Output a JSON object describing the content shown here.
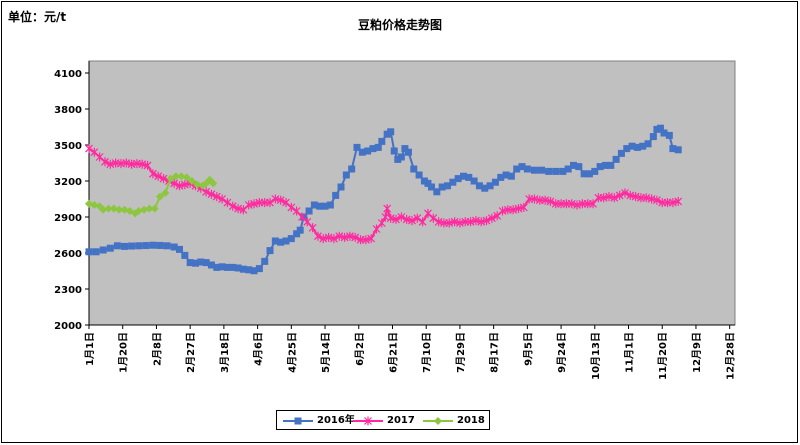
{
  "chart_data": {
    "type": "line",
    "title": "豆粕价格走势图",
    "unit_label": "单位：元/t",
    "ylim": [
      2000,
      4200
    ],
    "y_ticks": [
      2000,
      2300,
      2600,
      2900,
      3200,
      3500,
      3800,
      4100
    ],
    "x_ticks": [
      "1月1日",
      "1月20日",
      "2月8日",
      "2月27日",
      "3月18日",
      "4月6日",
      "4月25日",
      "5月14日",
      "6月2日",
      "6月21日",
      "7月10日",
      "7月29日",
      "8月17日",
      "9月5日",
      "9月24日",
      "10月13日",
      "11月1日",
      "11月20日",
      "12月9日",
      "12月28日"
    ],
    "x_day_of_year": [
      1,
      20,
      39,
      58,
      77,
      96,
      115,
      134,
      153,
      172,
      191,
      210,
      229,
      248,
      267,
      286,
      305,
      324,
      343,
      362
    ],
    "grid": false,
    "legend_position": "bottom",
    "series": [
      {
        "name": "2016年",
        "color": "#4472c4",
        "marker": "square",
        "points": [
          [
            1,
            2610
          ],
          [
            5,
            2610
          ],
          [
            9,
            2625
          ],
          [
            13,
            2640
          ],
          [
            17,
            2660
          ],
          [
            21,
            2655
          ],
          [
            25,
            2658
          ],
          [
            29,
            2660
          ],
          [
            33,
            2662
          ],
          [
            37,
            2665
          ],
          [
            41,
            2663
          ],
          [
            45,
            2660
          ],
          [
            49,
            2650
          ],
          [
            52,
            2630
          ],
          [
            55,
            2580
          ],
          [
            58,
            2520
          ],
          [
            61,
            2515
          ],
          [
            64,
            2525
          ],
          [
            67,
            2520
          ],
          [
            70,
            2500
          ],
          [
            73,
            2480
          ],
          [
            76,
            2485
          ],
          [
            79,
            2480
          ],
          [
            82,
            2480
          ],
          [
            85,
            2475
          ],
          [
            88,
            2465
          ],
          [
            91,
            2460
          ],
          [
            94,
            2452
          ],
          [
            97,
            2470
          ],
          [
            100,
            2530
          ],
          [
            103,
            2620
          ],
          [
            106,
            2700
          ],
          [
            109,
            2690
          ],
          [
            112,
            2700
          ],
          [
            115,
            2720
          ],
          [
            118,
            2760
          ],
          [
            120,
            2790
          ],
          [
            122,
            2900
          ],
          [
            125,
            2950
          ],
          [
            128,
            3000
          ],
          [
            131,
            2990
          ],
          [
            134,
            2990
          ],
          [
            137,
            3000
          ],
          [
            140,
            3080
          ],
          [
            143,
            3150
          ],
          [
            146,
            3250
          ],
          [
            149,
            3300
          ],
          [
            152,
            3480
          ],
          [
            155,
            3440
          ],
          [
            158,
            3450
          ],
          [
            161,
            3470
          ],
          [
            164,
            3480
          ],
          [
            166,
            3530
          ],
          [
            169,
            3590
          ],
          [
            171,
            3610
          ],
          [
            173,
            3450
          ],
          [
            175,
            3380
          ],
          [
            177,
            3400
          ],
          [
            179,
            3470
          ],
          [
            181,
            3440
          ],
          [
            184,
            3300
          ],
          [
            187,
            3250
          ],
          [
            190,
            3200
          ],
          [
            192,
            3180
          ],
          [
            194,
            3150
          ],
          [
            197,
            3110
          ],
          [
            200,
            3150
          ],
          [
            203,
            3160
          ],
          [
            206,
            3190
          ],
          [
            209,
            3220
          ],
          [
            212,
            3240
          ],
          [
            215,
            3230
          ],
          [
            218,
            3200
          ],
          [
            221,
            3160
          ],
          [
            224,
            3140
          ],
          [
            227,
            3160
          ],
          [
            230,
            3190
          ],
          [
            233,
            3230
          ],
          [
            236,
            3250
          ],
          [
            239,
            3240
          ],
          [
            242,
            3300
          ],
          [
            245,
            3320
          ],
          [
            248,
            3300
          ],
          [
            252,
            3290
          ],
          [
            256,
            3290
          ],
          [
            260,
            3280
          ],
          [
            264,
            3280
          ],
          [
            268,
            3280
          ],
          [
            271,
            3300
          ],
          [
            274,
            3330
          ],
          [
            277,
            3320
          ],
          [
            280,
            3260
          ],
          [
            283,
            3260
          ],
          [
            286,
            3280
          ],
          [
            289,
            3320
          ],
          [
            292,
            3330
          ],
          [
            295,
            3330
          ],
          [
            298,
            3380
          ],
          [
            301,
            3430
          ],
          [
            304,
            3470
          ],
          [
            307,
            3490
          ],
          [
            310,
            3480
          ],
          [
            313,
            3490
          ],
          [
            316,
            3510
          ],
          [
            319,
            3570
          ],
          [
            321,
            3630
          ],
          [
            323,
            3640
          ],
          [
            325,
            3600
          ],
          [
            328,
            3580
          ],
          [
            330,
            3470
          ],
          [
            333,
            3460
          ]
        ]
      },
      {
        "name": "2017",
        "color": "#ff2aa0",
        "marker": "star",
        "points": [
          [
            1,
            3470
          ],
          [
            4,
            3440
          ],
          [
            7,
            3400
          ],
          [
            10,
            3360
          ],
          [
            13,
            3340
          ],
          [
            16,
            3350
          ],
          [
            19,
            3345
          ],
          [
            22,
            3350
          ],
          [
            25,
            3340
          ],
          [
            28,
            3345
          ],
          [
            31,
            3340
          ],
          [
            34,
            3330
          ],
          [
            37,
            3260
          ],
          [
            40,
            3240
          ],
          [
            43,
            3220
          ],
          [
            46,
            3200
          ],
          [
            49,
            3180
          ],
          [
            52,
            3160
          ],
          [
            55,
            3170
          ],
          [
            58,
            3180
          ],
          [
            61,
            3160
          ],
          [
            64,
            3140
          ],
          [
            67,
            3110
          ],
          [
            70,
            3090
          ],
          [
            73,
            3070
          ],
          [
            76,
            3050
          ],
          [
            79,
            3020
          ],
          [
            82,
            2990
          ],
          [
            85,
            2970
          ],
          [
            88,
            2960
          ],
          [
            91,
            3000
          ],
          [
            94,
            3010
          ],
          [
            97,
            3020
          ],
          [
            100,
            3020
          ],
          [
            103,
            3020
          ],
          [
            106,
            3050
          ],
          [
            109,
            3040
          ],
          [
            112,
            3020
          ],
          [
            115,
            2980
          ],
          [
            118,
            2950
          ],
          [
            121,
            2900
          ],
          [
            124,
            2860
          ],
          [
            127,
            2810
          ],
          [
            130,
            2740
          ],
          [
            133,
            2720
          ],
          [
            136,
            2730
          ],
          [
            139,
            2720
          ],
          [
            142,
            2740
          ],
          [
            145,
            2730
          ],
          [
            148,
            2740
          ],
          [
            151,
            2730
          ],
          [
            154,
            2710
          ],
          [
            157,
            2710
          ],
          [
            160,
            2720
          ],
          [
            163,
            2800
          ],
          [
            166,
            2850
          ],
          [
            168,
            2900
          ],
          [
            169,
            2970
          ],
          [
            171,
            2890
          ],
          [
            174,
            2880
          ],
          [
            177,
            2900
          ],
          [
            180,
            2880
          ],
          [
            183,
            2870
          ],
          [
            186,
            2890
          ],
          [
            189,
            2860
          ],
          [
            192,
            2930
          ],
          [
            195,
            2890
          ],
          [
            198,
            2860
          ],
          [
            201,
            2850
          ],
          [
            204,
            2850
          ],
          [
            207,
            2860
          ],
          [
            210,
            2850
          ],
          [
            213,
            2860
          ],
          [
            216,
            2860
          ],
          [
            219,
            2870
          ],
          [
            222,
            2860
          ],
          [
            225,
            2870
          ],
          [
            228,
            2890
          ],
          [
            231,
            2910
          ],
          [
            234,
            2950
          ],
          [
            237,
            2960
          ],
          [
            240,
            2960
          ],
          [
            243,
            2970
          ],
          [
            246,
            2980
          ],
          [
            249,
            3050
          ],
          [
            252,
            3050
          ],
          [
            255,
            3040
          ],
          [
            258,
            3040
          ],
          [
            261,
            3030
          ],
          [
            264,
            3010
          ],
          [
            267,
            3010
          ],
          [
            270,
            3010
          ],
          [
            273,
            3010
          ],
          [
            276,
            3000
          ],
          [
            279,
            3010
          ],
          [
            282,
            3010
          ],
          [
            285,
            3010
          ],
          [
            288,
            3060
          ],
          [
            291,
            3060
          ],
          [
            294,
            3070
          ],
          [
            297,
            3060
          ],
          [
            300,
            3080
          ],
          [
            303,
            3100
          ],
          [
            306,
            3080
          ],
          [
            309,
            3070
          ],
          [
            312,
            3060
          ],
          [
            315,
            3060
          ],
          [
            318,
            3050
          ],
          [
            321,
            3040
          ],
          [
            324,
            3020
          ],
          [
            327,
            3020
          ],
          [
            330,
            3020
          ],
          [
            333,
            3030
          ]
        ]
      },
      {
        "name": "2018",
        "color": "#8dc63f",
        "marker": "diamond",
        "points": [
          [
            1,
            3010
          ],
          [
            4,
            3000
          ],
          [
            7,
            2990
          ],
          [
            9,
            2960
          ],
          [
            12,
            2970
          ],
          [
            15,
            2970
          ],
          [
            18,
            2960
          ],
          [
            21,
            2960
          ],
          [
            24,
            2950
          ],
          [
            27,
            2930
          ],
          [
            29,
            2950
          ],
          [
            32,
            2960
          ],
          [
            35,
            2970
          ],
          [
            38,
            2970
          ],
          [
            41,
            3070
          ],
          [
            44,
            3100
          ],
          [
            47,
            3220
          ],
          [
            50,
            3240
          ],
          [
            53,
            3240
          ],
          [
            56,
            3230
          ],
          [
            59,
            3200
          ],
          [
            62,
            3170
          ],
          [
            65,
            3160
          ],
          [
            67,
            3180
          ],
          [
            69,
            3210
          ],
          [
            71,
            3180
          ]
        ]
      }
    ]
  }
}
